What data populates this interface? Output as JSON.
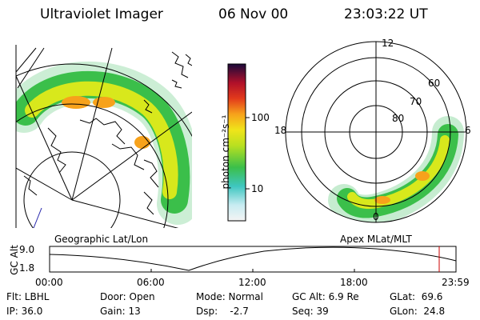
{
  "header": {
    "instrument": "Ultraviolet Imager",
    "date": "06 Nov 00",
    "time": "23:03:22 UT"
  },
  "colorbar": {
    "unit_label": "photon cm⁻²s⁻¹",
    "ticks": [
      "100",
      "10"
    ]
  },
  "polar_plot": {
    "clock_labels": [
      "12",
      "18",
      "6",
      "0"
    ],
    "lat_labels": [
      "60",
      "70",
      "80"
    ]
  },
  "panel_labels": {
    "left": "Geographic Lat/Lon",
    "right": "Apex MLat/MLT"
  },
  "altitude_strip": {
    "axis_label": "GC Alt",
    "y_ticks": [
      "9.0",
      "1.8"
    ],
    "time_ticks": [
      "00:00",
      "06:00",
      "12:00",
      "18:00",
      "23:59"
    ]
  },
  "footer": {
    "filter": "Flt: LBHL",
    "ip": "IP: 36.0",
    "door": "Door: Open",
    "gain": "Gain: 13",
    "mode": "Mode: Normal",
    "dsp": "Dsp:    -2.7",
    "gc_alt": "GC Alt: 6.9 Re",
    "seq": "Seq: 39",
    "glat": "GLat:  69.6",
    "glon": "GLon:  24.8"
  },
  "colors": {
    "auroral_low": "#3bbf4a",
    "auroral_mid": "#d8e81c",
    "auroral_high": "#f7a21b",
    "marker": "#cc0000"
  }
}
